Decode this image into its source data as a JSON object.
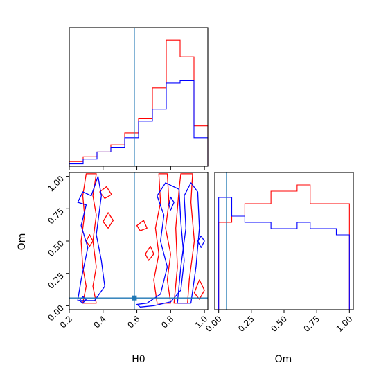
{
  "chart_data": {
    "type": "corner",
    "parameters": [
      "H0",
      "Om"
    ],
    "truth": {
      "H0": 0.585,
      "Om": 0.06
    },
    "colors": {
      "series_a": "#ff0000",
      "series_b": "#0000ff",
      "truth": "#1f77b4"
    },
    "histograms": [
      {
        "parameter": "H0",
        "x_range": [
          0.2,
          1.02
        ],
        "x_ticks": [
          0.2,
          0.4,
          0.6,
          0.8,
          1.0
        ],
        "bin_edges": [
          0.2,
          0.282,
          0.364,
          0.446,
          0.528,
          0.61,
          0.692,
          0.774,
          0.856,
          0.938,
          1.02
        ],
        "series": [
          {
            "values": [
              2,
              4,
              6,
              9,
              14,
              20,
              33,
              53,
              46,
              17
            ]
          },
          {
            "values": [
              1,
              3,
              6,
              8,
              12,
              19,
              24,
              35,
              36,
              12
            ]
          }
        ]
      },
      {
        "parameter": "Om",
        "x_range": [
          -0.03,
          1.03
        ],
        "x_ticks": [
          0.0,
          0.25,
          0.5,
          0.75,
          1.0
        ],
        "tick_labels": [
          "0.00",
          "0.25",
          "0.50",
          "0.75",
          "1.00"
        ],
        "bin_edges": [
          0.0,
          0.1,
          0.2,
          0.3,
          0.4,
          0.5,
          0.6,
          0.7,
          0.8,
          0.9,
          1.0
        ],
        "series": [
          {
            "values": [
              14,
              15,
              17,
              17,
              19,
              19,
              20,
              17,
              17,
              17
            ]
          },
          {
            "values": [
              18,
              15,
              14,
              14,
              13,
              13,
              14,
              13,
              13,
              12
            ]
          }
        ]
      }
    ],
    "contour_panel": {
      "x_param": "H0",
      "y_param": "Om",
      "x_range": [
        0.2,
        1.02
      ],
      "y_range": [
        -0.03,
        1.03
      ],
      "x_ticks": [
        0.2,
        0.4,
        0.6,
        0.8,
        1.0
      ],
      "y_ticks": [
        0.0,
        0.25,
        0.5,
        0.75,
        1.0
      ],
      "y_tick_labels": [
        "0.00",
        "0.25",
        "0.50",
        "0.75",
        "1.00"
      ],
      "series": [
        {
          "contours": [
            [
              [
                0.28,
                0.02
              ],
              [
                0.3,
                0.15
              ],
              [
                0.28,
                0.3
              ],
              [
                0.27,
                0.5
              ],
              [
                0.29,
                0.7
              ],
              [
                0.28,
                0.85
              ],
              [
                0.3,
                1.02
              ],
              [
                0.36,
                1.02
              ],
              [
                0.34,
                0.85
              ],
              [
                0.36,
                0.7
              ],
              [
                0.34,
                0.5
              ],
              [
                0.36,
                0.3
              ],
              [
                0.34,
                0.15
              ],
              [
                0.36,
                0.02
              ]
            ],
            [
              [
                0.72,
                0.02
              ],
              [
                0.7,
                0.2
              ],
              [
                0.73,
                0.4
              ],
              [
                0.71,
                0.6
              ],
              [
                0.74,
                0.8
              ],
              [
                0.73,
                1.02
              ],
              [
                0.78,
                1.02
              ],
              [
                0.79,
                0.8
              ],
              [
                0.77,
                0.6
              ],
              [
                0.8,
                0.4
              ],
              [
                0.78,
                0.2
              ],
              [
                0.8,
                0.02
              ]
            ],
            [
              [
                0.82,
                0.02
              ],
              [
                0.84,
                0.3
              ],
              [
                0.83,
                0.6
              ],
              [
                0.85,
                0.9
              ],
              [
                0.86,
                1.02
              ],
              [
                0.93,
                1.02
              ],
              [
                0.92,
                0.8
              ],
              [
                0.94,
                0.5
              ],
              [
                0.91,
                0.2
              ],
              [
                0.9,
                0.02
              ]
            ],
            [
              [
                0.4,
                0.65
              ],
              [
                0.43,
                0.72
              ],
              [
                0.46,
                0.66
              ],
              [
                0.43,
                0.6
              ]
            ],
            [
              [
                0.38,
                0.88
              ],
              [
                0.42,
                0.92
              ],
              [
                0.45,
                0.86
              ],
              [
                0.41,
                0.83
              ]
            ],
            [
              [
                0.3,
                0.5
              ],
              [
                0.32,
                0.55
              ],
              [
                0.34,
                0.5
              ],
              [
                0.32,
                0.46
              ]
            ],
            [
              [
                0.6,
                0.62
              ],
              [
                0.64,
                0.66
              ],
              [
                0.66,
                0.6
              ],
              [
                0.62,
                0.58
              ]
            ],
            [
              [
                0.65,
                0.4
              ],
              [
                0.68,
                0.46
              ],
              [
                0.7,
                0.4
              ],
              [
                0.67,
                0.35
              ]
            ],
            [
              [
                0.94,
                0.1
              ],
              [
                0.97,
                0.2
              ],
              [
                1.0,
                0.12
              ],
              [
                0.97,
                0.05
              ]
            ]
          ]
        },
        {
          "contours": [
            [
              [
                0.25,
                0.04
              ],
              [
                0.27,
                0.2
              ],
              [
                0.31,
                0.45
              ],
              [
                0.27,
                0.62
              ],
              [
                0.3,
                0.78
              ],
              [
                0.25,
                0.8
              ],
              [
                0.28,
                0.88
              ],
              [
                0.33,
                0.85
              ],
              [
                0.37,
                1.0
              ],
              [
                0.39,
                0.85
              ],
              [
                0.36,
                0.55
              ],
              [
                0.39,
                0.35
              ],
              [
                0.41,
                0.15
              ],
              [
                0.35,
                0.04
              ]
            ],
            [
              [
                0.6,
                0.01
              ],
              [
                0.66,
                0.02
              ],
              [
                0.74,
                0.09
              ],
              [
                0.78,
                0.3
              ],
              [
                0.74,
                0.5
              ],
              [
                0.76,
                0.7
              ],
              [
                0.72,
                0.85
              ],
              [
                0.77,
                0.95
              ],
              [
                0.85,
                0.9
              ],
              [
                0.86,
                0.65
              ],
              [
                0.88,
                0.35
              ],
              [
                0.86,
                0.12
              ],
              [
                0.8,
                0.03
              ],
              [
                0.7,
                0.0
              ],
              [
                0.62,
                -0.01
              ]
            ],
            [
              [
                0.84,
                0.02
              ],
              [
                0.86,
                0.3
              ],
              [
                0.89,
                0.6
              ],
              [
                0.88,
                0.85
              ],
              [
                0.92,
                0.95
              ],
              [
                0.96,
                0.88
              ],
              [
                0.97,
                0.6
              ],
              [
                0.95,
                0.3
              ],
              [
                0.92,
                0.02
              ]
            ],
            [
              [
                0.26,
                0.04
              ],
              [
                0.28,
                0.07
              ],
              [
                0.3,
                0.05
              ],
              [
                0.28,
                0.02
              ]
            ],
            [
              [
                0.79,
                0.78
              ],
              [
                0.8,
                0.84
              ],
              [
                0.82,
                0.8
              ],
              [
                0.8,
                0.74
              ]
            ],
            [
              [
                0.96,
                0.5
              ],
              [
                0.98,
                0.54
              ],
              [
                1.0,
                0.5
              ],
              [
                0.98,
                0.45
              ]
            ]
          ]
        }
      ]
    },
    "xlabels": [
      "H0",
      "Om"
    ],
    "ylabel": "Om"
  }
}
